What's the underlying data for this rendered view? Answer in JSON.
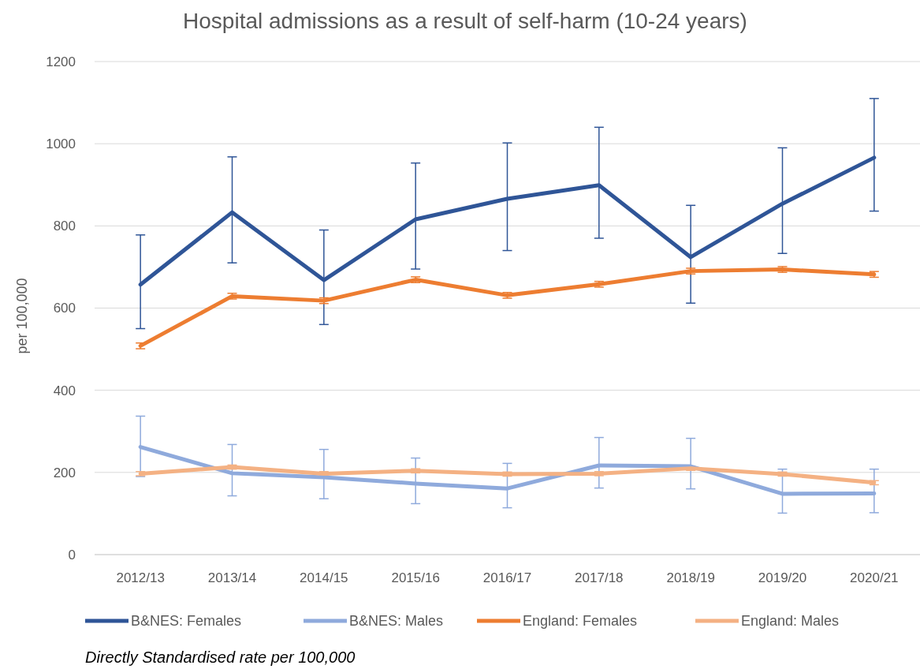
{
  "chart_data": {
    "type": "line",
    "title": "Hospital admissions as a result of self-harm (10-24 years)",
    "ylabel": "per 100,000",
    "categories": [
      "2012/13",
      "2013/14",
      "2014/15",
      "2015/16",
      "2016/17",
      "2017/18",
      "2018/19",
      "2019/20",
      "2020/21"
    ],
    "series": [
      {
        "name": "B&NES: Females",
        "color": "#2f5597",
        "values": [
          657,
          833,
          668,
          816,
          866,
          899,
          724,
          854,
          966
        ],
        "errors": [
          [
            550,
            778
          ],
          [
            710,
            968
          ],
          [
            560,
            790
          ],
          [
            695,
            953
          ],
          [
            740,
            1002
          ],
          [
            770,
            1040
          ],
          [
            612,
            850
          ],
          [
            733,
            990
          ],
          [
            836,
            1110
          ]
        ]
      },
      {
        "name": "B&NES: Males",
        "color": "#8faadc",
        "values": [
          262,
          198,
          188,
          173,
          161,
          217,
          215,
          148,
          149
        ],
        "errors": [
          [
            190,
            337
          ],
          [
            143,
            268
          ],
          [
            136,
            256
          ],
          [
            124,
            235
          ],
          [
            114,
            222
          ],
          [
            162,
            285
          ],
          [
            160,
            283
          ],
          [
            101,
            208
          ],
          [
            102,
            208
          ]
        ]
      },
      {
        "name": "England: Females",
        "color": "#ed7d31",
        "values": [
          508,
          629,
          618,
          669,
          631,
          658,
          690,
          694,
          682
        ],
        "errors": [
          7,
          7,
          7,
          7,
          7,
          7,
          7,
          7,
          7
        ]
      },
      {
        "name": "England: Males",
        "color": "#f4b183",
        "values": [
          197,
          213,
          197,
          204,
          196,
          197,
          210,
          196,
          175
        ],
        "errors": [
          5,
          5,
          5,
          5,
          5,
          5,
          5,
          5,
          5
        ]
      }
    ],
    "ylim": [
      0,
      1200
    ],
    "yticks": [
      0,
      200,
      400,
      600,
      800,
      1000,
      1200
    ],
    "grid": "y",
    "legend": "bottom",
    "line_style": "solid",
    "annotations": [
      "Directly Standardised rate per 100,000"
    ]
  }
}
